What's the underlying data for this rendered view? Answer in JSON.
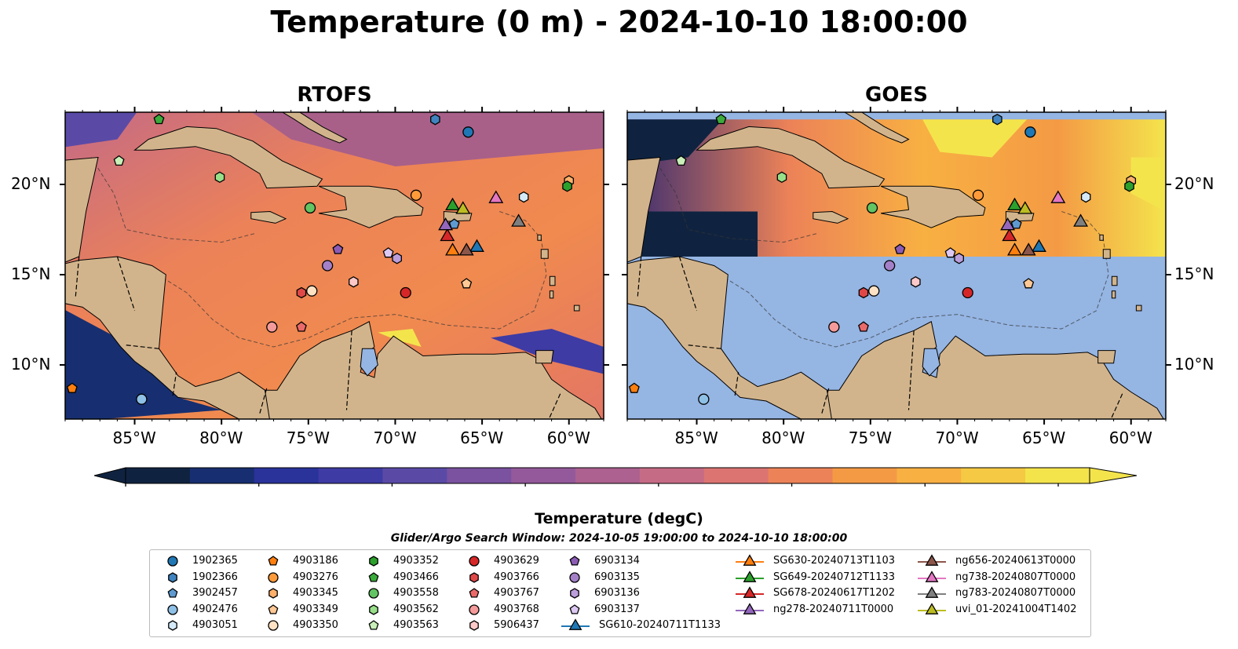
{
  "title": "Temperature (0 m) - 2024-10-10 18:00:00",
  "panels": [
    {
      "title": "RTOFS"
    },
    {
      "title": "GOES"
    }
  ],
  "map": {
    "lon_range": [
      -89,
      -58
    ],
    "lat_range": [
      7,
      24
    ],
    "lon_ticks": [
      "85°W",
      "80°W",
      "75°W",
      "70°W",
      "65°W",
      "60°W"
    ],
    "lat_ticks": [
      "20°N",
      "15°N",
      "10°N"
    ],
    "land_color": "#d2b48c",
    "nodata_color": "#95b5e3"
  },
  "colorbar": {
    "label": "Temperature (degC)",
    "min": 28.0,
    "max": 31.5,
    "ticks": [
      "28.0",
      "28.5",
      "29.0",
      "29.5",
      "30.0",
      "30.5",
      "31.0",
      "31.5"
    ],
    "colors": [
      "#0f2340",
      "#172f70",
      "#2a339a",
      "#3e3ba4",
      "#5a4aa6",
      "#7a52a0",
      "#94599a",
      "#ac6190",
      "#c66b86",
      "#dc7572",
      "#ec8258",
      "#f49a45",
      "#f8b042",
      "#f5c943",
      "#f4e44c"
    ],
    "extend": "both"
  },
  "search_window": "Glider/Argo Search Window: 2024-10-05 19:00:00 to 2024-10-10 18:00:00",
  "legend": {
    "columns": [
      [
        {
          "label": "1902365",
          "marker": "circle",
          "color": "#1f77b4"
        },
        {
          "label": "1902366",
          "marker": "hexagon",
          "color": "#3f84c0"
        },
        {
          "label": "3902457",
          "marker": "pentagon",
          "color": "#5e9ad0"
        },
        {
          "label": "4902476",
          "marker": "circle",
          "color": "#8fc0e6"
        },
        {
          "label": "4903051",
          "marker": "hexagon",
          "color": "#d4eaf8"
        }
      ],
      [
        {
          "label": "4903186",
          "marker": "pentagon",
          "color": "#ff7f0e"
        },
        {
          "label": "4903276",
          "marker": "circle",
          "color": "#ff9a3a"
        },
        {
          "label": "4903345",
          "marker": "hexagon",
          "color": "#ffb06a"
        },
        {
          "label": "4903349",
          "marker": "pentagon",
          "color": "#ffc894"
        },
        {
          "label": "4903350",
          "marker": "circle",
          "color": "#ffe2c4"
        }
      ],
      [
        {
          "label": "4903352",
          "marker": "hexagon",
          "color": "#2ca02c"
        },
        {
          "label": "4903466",
          "marker": "pentagon",
          "color": "#3bab3b"
        },
        {
          "label": "4903558",
          "marker": "circle",
          "color": "#62c462"
        },
        {
          "label": "4903562",
          "marker": "hexagon",
          "color": "#98df8a"
        },
        {
          "label": "4903563",
          "marker": "pentagon",
          "color": "#c8f0b8"
        }
      ],
      [
        {
          "label": "4903629",
          "marker": "circle",
          "color": "#d62728"
        },
        {
          "label": "4903766",
          "marker": "hexagon",
          "color": "#e04848"
        },
        {
          "label": "4903767",
          "marker": "pentagon",
          "color": "#ea6a6a"
        },
        {
          "label": "4903768",
          "marker": "circle",
          "color": "#f49a9a"
        },
        {
          "label": "5906437",
          "marker": "hexagon",
          "color": "#fcc8c8"
        }
      ],
      [
        {
          "label": "6903134",
          "marker": "pentagon",
          "color": "#8c5cb5"
        },
        {
          "label": "6903135",
          "marker": "circle",
          "color": "#a480c8"
        },
        {
          "label": "6903136",
          "marker": "hexagon",
          "color": "#bc9edb"
        },
        {
          "label": "6903137",
          "marker": "pentagon",
          "color": "#dcc8f2"
        },
        {
          "label": "SG610-20240711T1133",
          "marker": "triangle",
          "color": "#1f77b4"
        }
      ],
      [
        {
          "label": "SG630-20240713T1103",
          "marker": "triangle",
          "color": "#ff7f0e"
        },
        {
          "label": "SG649-20240712T1133",
          "marker": "triangle",
          "color": "#2ca02c"
        },
        {
          "label": "SG678-20240617T1202",
          "marker": "triangle",
          "color": "#d62728"
        },
        {
          "label": "ng278-20240711T0000",
          "marker": "triangle",
          "color": "#9467bd"
        }
      ],
      [
        {
          "label": "ng656-20240613T0000",
          "marker": "triangle",
          "color": "#8c564b"
        },
        {
          "label": "ng738-20240807T0000",
          "marker": "triangle",
          "color": "#e377c2"
        },
        {
          "label": "ng783-20240807T0000",
          "marker": "triangle",
          "color": "#7f7f7f"
        },
        {
          "label": "uvi_01-20241004T1402",
          "marker": "triangle",
          "color": "#bcbd22"
        }
      ]
    ]
  },
  "argo_floats": [
    {
      "id": "1902365",
      "lon": -65.8,
      "lat": 22.9
    },
    {
      "id": "1902366",
      "lon": -67.7,
      "lat": 23.6
    },
    {
      "id": "3902457",
      "lon": -66.6,
      "lat": 17.8
    },
    {
      "id": "4902476",
      "lon": -84.6,
      "lat": 8.1
    },
    {
      "id": "4903051",
      "lon": -62.6,
      "lat": 19.3
    },
    {
      "id": "4903186",
      "lon": -88.6,
      "lat": 8.7
    },
    {
      "id": "4903276",
      "lon": -68.8,
      "lat": 19.4
    },
    {
      "id": "4903345",
      "lon": -60.0,
      "lat": 20.2
    },
    {
      "id": "4903349",
      "lon": -65.9,
      "lat": 14.5
    },
    {
      "id": "4903350",
      "lon": -74.8,
      "lat": 14.1
    },
    {
      "id": "4903352",
      "lon": -60.1,
      "lat": 19.9
    },
    {
      "id": "4903466",
      "lon": -83.6,
      "lat": 23.6
    },
    {
      "id": "4903558",
      "lon": -74.9,
      "lat": 18.7
    },
    {
      "id": "4903562",
      "lon": -80.1,
      "lat": 20.4
    },
    {
      "id": "4903563",
      "lon": -85.9,
      "lat": 21.3
    },
    {
      "id": "4903629",
      "lon": -69.4,
      "lat": 14.0
    },
    {
      "id": "4903766",
      "lon": -75.4,
      "lat": 14.0
    },
    {
      "id": "4903767",
      "lon": -75.4,
      "lat": 12.1
    },
    {
      "id": "4903768",
      "lon": -77.1,
      "lat": 12.1
    },
    {
      "id": "5906437",
      "lon": -72.4,
      "lat": 14.6
    },
    {
      "id": "6903134",
      "lon": -73.3,
      "lat": 16.4
    },
    {
      "id": "6903135",
      "lon": -73.9,
      "lat": 15.5
    },
    {
      "id": "6903136",
      "lon": -69.9,
      "lat": 15.9
    },
    {
      "id": "6903137",
      "lon": -70.4,
      "lat": 16.2
    }
  ],
  "gliders": [
    {
      "id": "SG610-20240711T1133",
      "lon": -65.3,
      "lat": 16.5
    },
    {
      "id": "SG630-20240713T1103",
      "lon": -66.7,
      "lat": 16.3
    },
    {
      "id": "SG649-20240712T1133",
      "lon": -66.7,
      "lat": 18.8
    },
    {
      "id": "SG678-20240617T1202",
      "lon": -67.0,
      "lat": 17.1
    },
    {
      "id": "ng278-20240711T0000",
      "lon": -67.1,
      "lat": 17.7
    },
    {
      "id": "ng656-20240613T0000",
      "lon": -65.9,
      "lat": 16.3
    },
    {
      "id": "ng738-20240807T0000",
      "lon": -64.2,
      "lat": 19.2
    },
    {
      "id": "ng783-20240807T0000",
      "lon": -62.9,
      "lat": 17.9
    },
    {
      "id": "uvi_01-20241004T1402",
      "lon": -66.1,
      "lat": 18.6
    }
  ]
}
